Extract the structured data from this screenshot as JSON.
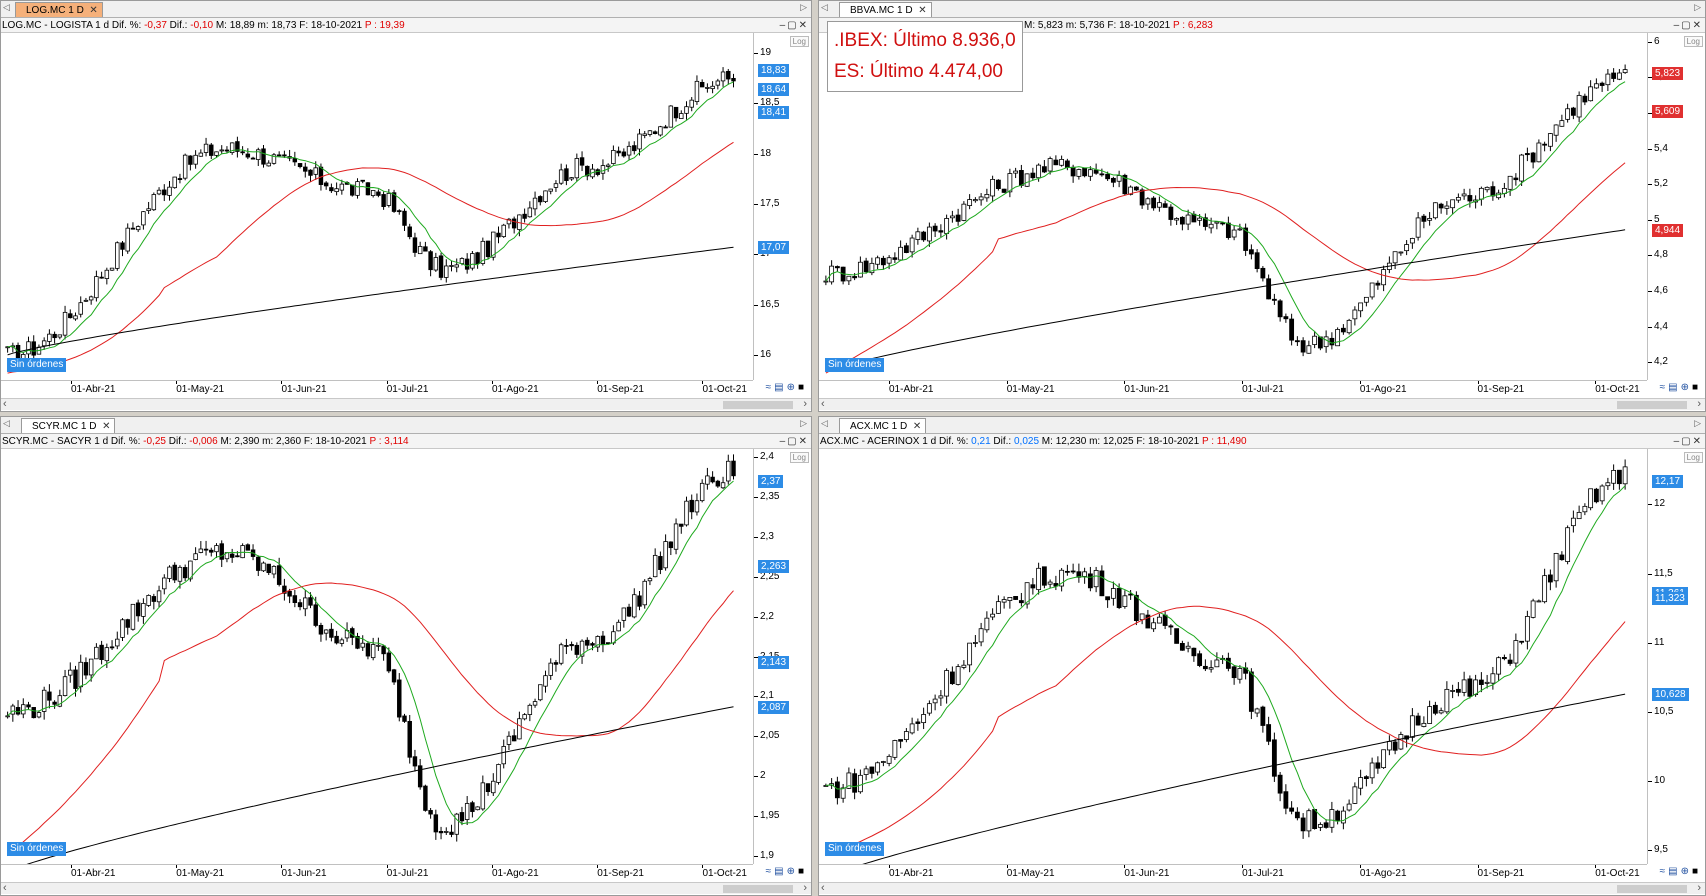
{
  "panels": [
    {
      "id": "log",
      "tab": "LOG.MC 1 D",
      "info": {
        "name": "LOG.MC - LOGISTA",
        "tf": "1 d",
        "pct_label": "Dif. %:",
        "pct": "-0,37",
        "dif_label": "Dif.:",
        "dif": "-0,10",
        "max_label": "M:",
        "max": "18,89",
        "min_label": "m:",
        "min": "18,73",
        "date_label": "F:",
        "date": "18-10-2021",
        "p_label": "P :",
        "p": "19,39"
      },
      "yticks": [
        "19",
        "18,5",
        "18",
        "17,5",
        "17",
        "16,5",
        "16"
      ],
      "ymin": 15.75,
      "ymax": 19.2,
      "tags": [
        {
          "text": "18,83",
          "v": 18.83,
          "color": "blue"
        },
        {
          "text": "18,64",
          "v": 18.64,
          "color": "blue"
        },
        {
          "text": "18,41",
          "v": 18.41,
          "color": "blue"
        },
        {
          "text": "17,07",
          "v": 17.07,
          "color": "blue"
        }
      ],
      "xlabels": [
        "01-Abr-21",
        "01-May-21",
        "01-Jun-21",
        "01-Jul-21",
        "01-Ago-21",
        "01-Sep-21",
        "01-Oct-21"
      ],
      "start": 16.0,
      "end": 18.75,
      "peakA": 18.05,
      "dip": 16.85,
      "peakB": 18.9,
      "sma200": [
        16.0,
        17.07
      ],
      "orders": "Sin órdenes"
    },
    {
      "id": "bbva",
      "tab": "BBVA.MC 1 D",
      "info": {
        "name": "",
        "tf": "",
        "pct_label": "",
        "pct": "",
        "dif_label": "",
        "dif": "",
        "max_label": "M:",
        "max": "5,823",
        "min_label": "m:",
        "min": "5,736",
        "date_label": "F:",
        "date": "18-10-2021",
        "p_label": "P :",
        "p": "6,283"
      },
      "yticks": [
        "6",
        "5,8",
        "5,6",
        "5,4",
        "5,2",
        "5",
        "4,8",
        "4,6",
        "4,4",
        "4,2"
      ],
      "ymin": 4.1,
      "ymax": 6.05,
      "tags": [
        {
          "text": "5,823",
          "v": 5.823,
          "color": "red"
        },
        {
          "text": "5,609",
          "v": 5.609,
          "color": "red"
        },
        {
          "text": "4,944",
          "v": 4.944,
          "color": "red"
        }
      ],
      "xlabels": [
        "01-Abr-21",
        "01-May-21",
        "01-Jun-21",
        "01-Jul-21",
        "01-Ago-21",
        "01-Sep-21",
        "01-Oct-21"
      ],
      "start": 4.7,
      "end": 5.8,
      "peakA": 5.3,
      "dip": 4.3,
      "peakB": 5.95,
      "sma200": [
        4.15,
        4.944
      ],
      "orders": "Sin órdenes",
      "quotes": [
        ".IBEX: Último 8.936,0",
        "ES: Último 4.474,00"
      ]
    },
    {
      "id": "scyr",
      "tab": "SCYR.MC 1 D",
      "info": {
        "name": "SCYR.MC - SACYR",
        "tf": "1 d",
        "pct_label": "Dif. %:",
        "pct": "-0,25",
        "dif_label": "Dif.:",
        "dif": "-0,006",
        "max_label": "M:",
        "max": "2,390",
        "min_label": "m:",
        "min": "2,360",
        "date_label": "F:",
        "date": "18-10-2021",
        "p_label": "P :",
        "p": "3,114"
      },
      "yticks": [
        "2,4",
        "2,35",
        "2,3",
        "2,25",
        "2,2",
        "2,15",
        "2,1",
        "2,05",
        "2",
        "1,95",
        "1,9"
      ],
      "ymin": 1.89,
      "ymax": 2.41,
      "tags": [
        {
          "text": "2,37",
          "v": 2.37,
          "color": "blue"
        },
        {
          "text": "2,263",
          "v": 2.263,
          "color": "blue"
        },
        {
          "text": "2,143",
          "v": 2.143,
          "color": "blue"
        },
        {
          "text": "2,087",
          "v": 2.087,
          "color": "blue"
        }
      ],
      "xlabels": [
        "01-Abr-21",
        "01-May-21",
        "01-Jun-21",
        "01-Jul-21",
        "01-Ago-21",
        "01-Sep-21",
        "01-Oct-21"
      ],
      "start": 2.08,
      "end": 2.38,
      "peakA": 2.28,
      "dip": 1.94,
      "peakB": 2.4,
      "sma200": [
        1.88,
        2.087
      ],
      "orders": "Sin órdenes"
    },
    {
      "id": "acx",
      "tab": "ACX.MC 1 D",
      "info": {
        "name": "ACX.MC - ACERINOX",
        "tf": "1 d",
        "pct_label": "Dif. %:",
        "pct": "0,21",
        "dif_label": "Dif.:",
        "dif": "0,025",
        "max_label": "M:",
        "max": "12,230",
        "min_label": "m:",
        "min": "12,025",
        "date_label": "F:",
        "date": "18-10-2021",
        "p_label": "P :",
        "p": "11,490"
      },
      "yticks": [
        "12",
        "11,5",
        "11",
        "10,5",
        "10",
        "9,5"
      ],
      "ymin": 9.4,
      "ymax": 12.4,
      "tags": [
        {
          "text": "12,17",
          "v": 12.17,
          "color": "blue"
        },
        {
          "text": "11,361",
          "v": 11.361,
          "color": "blue"
        },
        {
          "text": "11,323",
          "v": 11.323,
          "color": "blue"
        },
        {
          "text": "10,628",
          "v": 10.628,
          "color": "blue"
        }
      ],
      "xlabels": [
        "01-Abr-21",
        "01-May-21",
        "01-Jun-21",
        "01-Jul-21",
        "01-Ago-21",
        "01-Sep-21",
        "01-Oct-21"
      ],
      "start": 9.95,
      "end": 12.2,
      "peakA": 11.5,
      "dip": 9.7,
      "peakB": 11.6,
      "sma200": [
        9.3,
        10.628
      ],
      "orders": "Sin órdenes"
    }
  ],
  "colors": {
    "fast_ma": "#1faa1f",
    "mid_ma": "#e02020",
    "slow_ma": "#000000",
    "bull": "#ffffff",
    "bear": "#000000",
    "tag_blue": "#2d8ce6",
    "tag_red": "#e03030",
    "active_tab": "#f5b07a"
  },
  "icons": {
    "minimize": "minimize-icon",
    "restore": "restore-icon",
    "close": "close-icon",
    "log": "log-scale-icon"
  },
  "log_label": "Log"
}
